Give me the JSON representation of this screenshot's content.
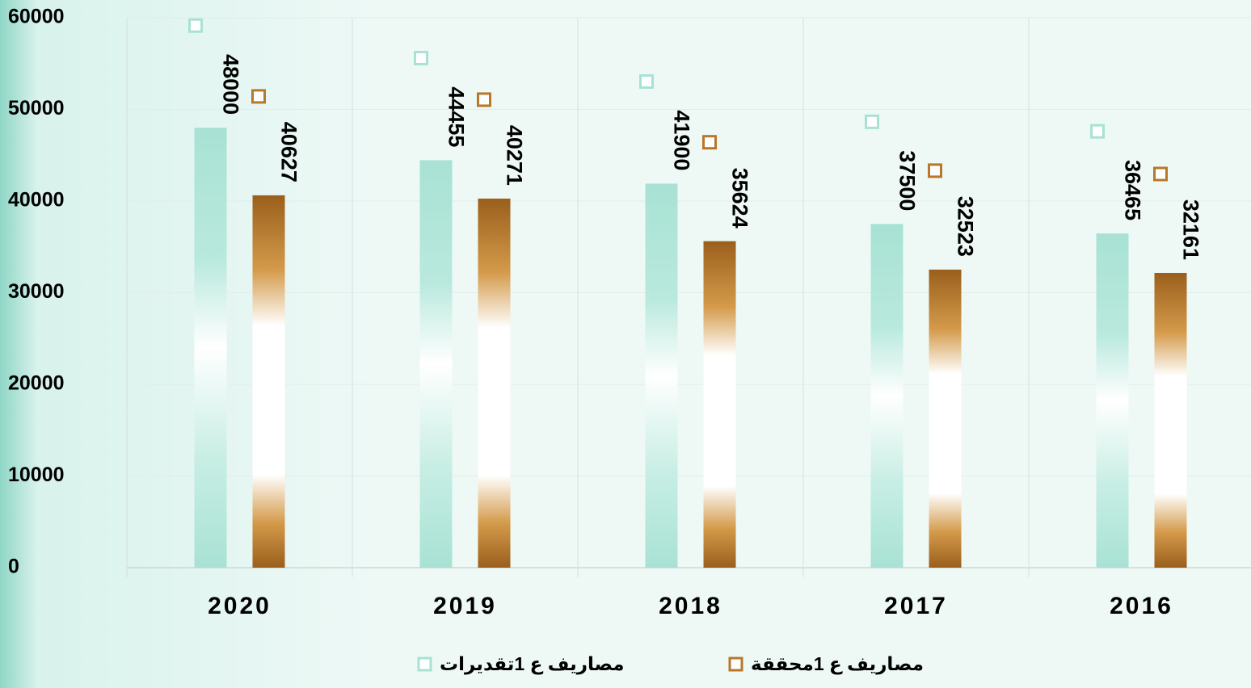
{
  "chart_data": {
    "type": "bar",
    "categories": [
      "2020",
      "2019",
      "2018",
      "2017",
      "2016"
    ],
    "series": [
      {
        "name": "مصاريف ع 1تقديرات",
        "color": "#a8e2d4",
        "values": [
          48000,
          44455,
          41900,
          37500,
          36465
        ]
      },
      {
        "name": "مصاريف ع 1محققة",
        "color": "#b8782a",
        "values": [
          40627,
          40271,
          35624,
          32523,
          32161
        ]
      }
    ],
    "ylim": [
      0,
      60000
    ],
    "yticks": [
      0,
      10000,
      20000,
      30000,
      40000,
      50000,
      60000
    ],
    "grid": true
  }
}
